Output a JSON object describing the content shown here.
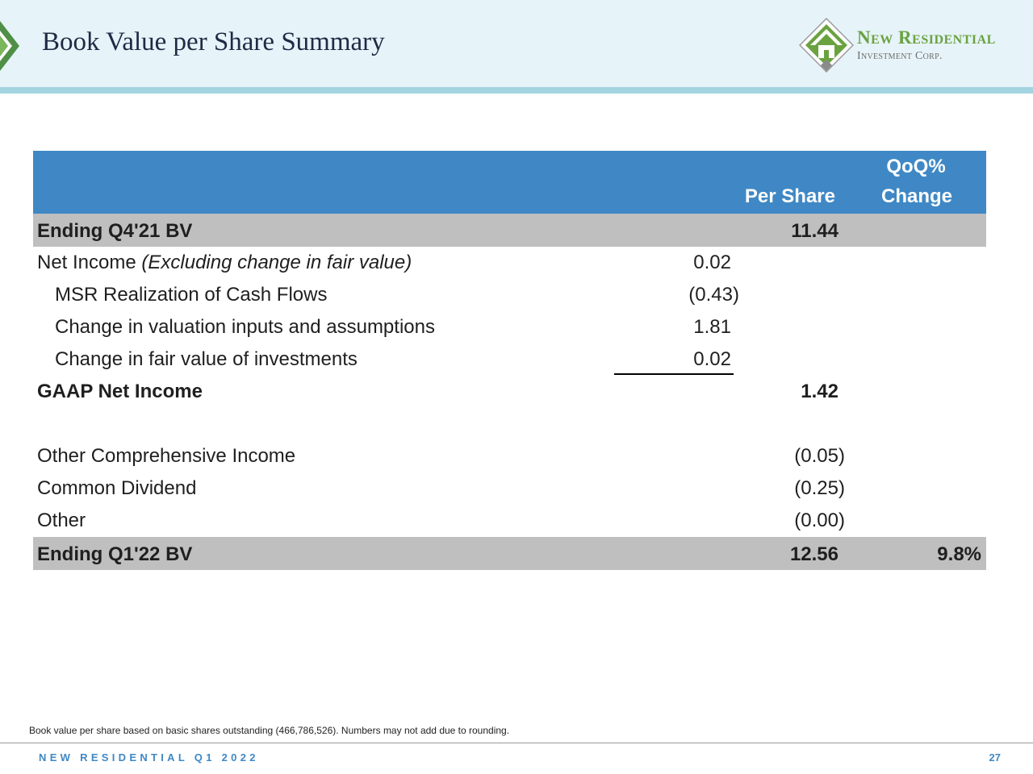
{
  "header": {
    "title": "Book Value per Share Summary",
    "logo_name": "New Residential",
    "logo_sub": "Investment Corp."
  },
  "table": {
    "col_per_share": "Per Share",
    "col_qoq_line1": "QoQ%",
    "col_qoq_line2": "Change",
    "rows": [
      {
        "label": "Ending Q4'21 BV",
        "per_share": "11.44"
      },
      {
        "label": "Net Income",
        "label_italic": "(Excluding change in fair value)",
        "detail": "0.02"
      },
      {
        "label": "MSR Realization of Cash Flows",
        "detail": "(0.43)"
      },
      {
        "label": "Change in valuation inputs and assumptions",
        "detail": "1.81"
      },
      {
        "label": "Change in fair value of investments",
        "detail": "0.02"
      },
      {
        "label": "GAAP Net Income",
        "per_share": "1.42"
      },
      {
        "label": "Other Comprehensive Income",
        "per_share": "(0.05)"
      },
      {
        "label": "Common Dividend",
        "per_share": "(0.25)"
      },
      {
        "label": "Other",
        "per_share": "(0.00)"
      },
      {
        "label": "Ending Q1'22 BV",
        "per_share": "12.56",
        "qoq_change": "9.8%"
      }
    ]
  },
  "footnote": "Book value per share based on basic shares outstanding (466,786,526). Numbers may not add due to rounding.",
  "footer": {
    "left": "NEW RESIDENTIAL Q1 2022",
    "page_number": "27"
  },
  "colors": {
    "table_header": "#3f88c5",
    "shaded_row": "#bfbfbf",
    "header_bg": "#e6f3f8",
    "header_rule": "#a3d4e0",
    "logo_green": "#6aa240"
  },
  "icons": {
    "header_left": "chevron-right-icon",
    "logo": "house-diamond-icon"
  }
}
